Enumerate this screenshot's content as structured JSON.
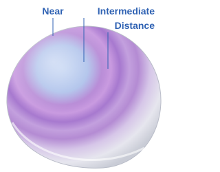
{
  "labels": {
    "near": "Near",
    "intermediate": "Intermediate",
    "distance": "Distance"
  }
}
